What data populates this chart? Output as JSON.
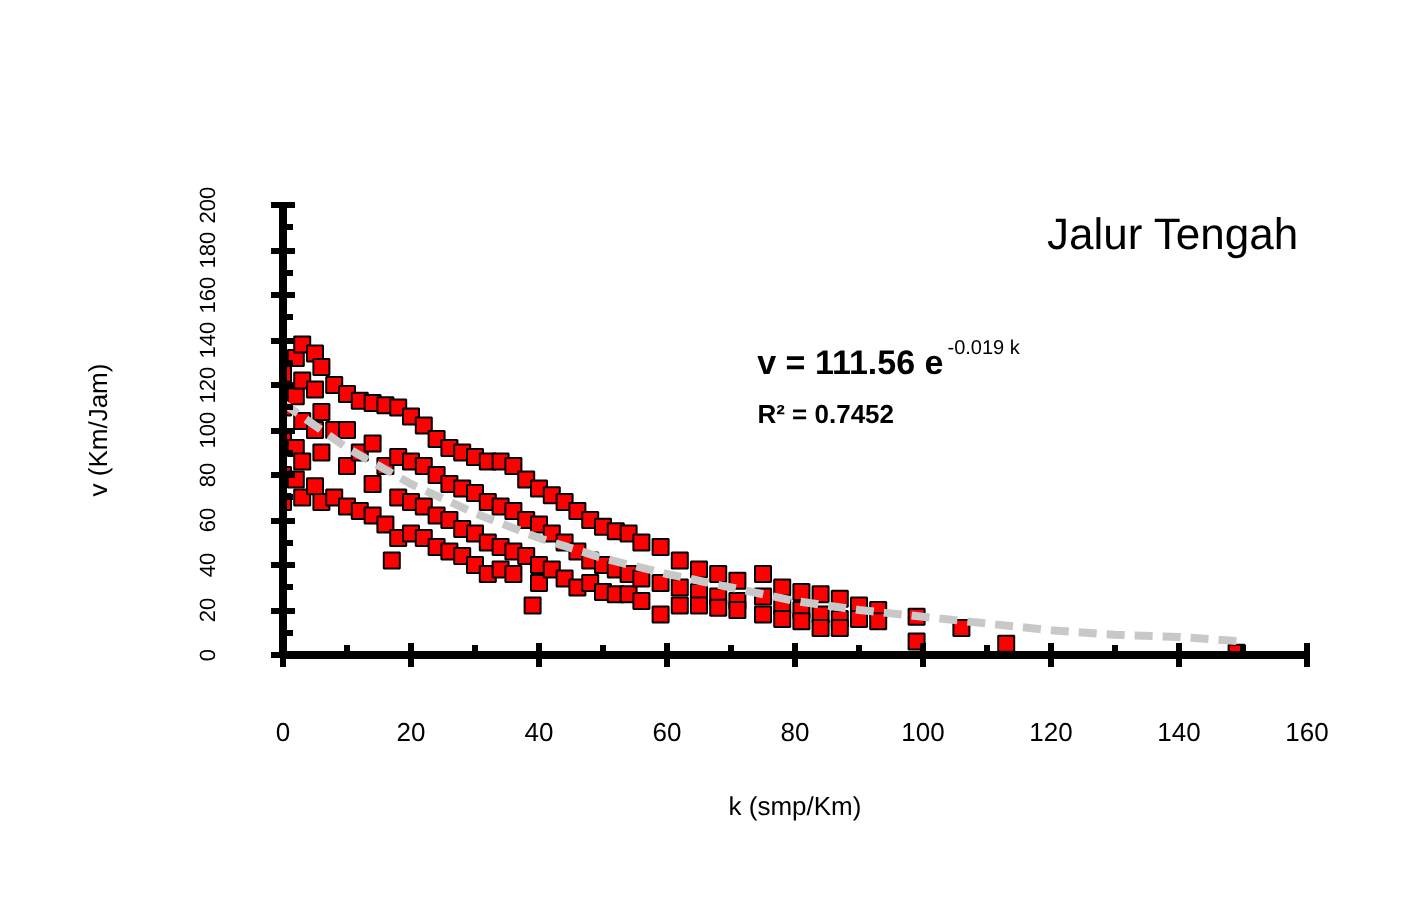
{
  "chart_data": {
    "type": "scatter",
    "title": "Jalur Tengah",
    "xlabel": "k (smp/Km)",
    "ylabel": "v (Km/Jam)",
    "annotations": [
      "v = 111.56 e$^{-0.019 k}$",
      "R² = 0.7452"
    ],
    "xlim": [
      0,
      160
    ],
    "ylim": [
      0,
      200
    ],
    "xticks": [
      0,
      {
        "value": 10,
        "label": null
      },
      20,
      {
        "value": 30,
        "label": null
      },
      40,
      {
        "value": 50,
        "label": null
      },
      60,
      {
        "value": 70,
        "label": null
      },
      80,
      {
        "value": 90,
        "label": null
      },
      100,
      {
        "value": 110,
        "label": null
      },
      120,
      {
        "value": 130,
        "label": null
      },
      140,
      {
        "value": 150,
        "label": null
      },
      160
    ],
    "yticks": [
      0,
      {
        "value": 10,
        "label": null
      },
      20,
      {
        "value": 30,
        "label": null
      },
      40,
      {
        "value": 50,
        "label": null
      },
      60,
      {
        "value": 70,
        "label": null
      },
      80,
      {
        "value": 90,
        "label": null
      },
      100,
      {
        "value": 110,
        "label": null
      },
      120,
      {
        "value": 130,
        "label": null
      },
      140,
      {
        "value": 150,
        "label": null
      },
      160,
      {
        "value": 170,
        "label": null
      },
      180,
      {
        "value": 190,
        "label": null
      },
      200
    ],
    "series": [
      {
        "marker": "square",
        "color": "#ff0000",
        "x": [
          0,
          0,
          0,
          0,
          0,
          2,
          2,
          2,
          2,
          3,
          3,
          3,
          3,
          3,
          5,
          5,
          5,
          5,
          6,
          6,
          6,
          6,
          8,
          8,
          8,
          10,
          10,
          10,
          10,
          12,
          12,
          12,
          14,
          14,
          14,
          14,
          16,
          16,
          16,
          17,
          18,
          18,
          18,
          18,
          20,
          20,
          20,
          20,
          22,
          22,
          22,
          22,
          24,
          24,
          24,
          24,
          26,
          26,
          26,
          26,
          28,
          28,
          28,
          28,
          30,
          30,
          30,
          30,
          32,
          32,
          32,
          32,
          34,
          34,
          34,
          34,
          36,
          36,
          36,
          36,
          38,
          38,
          38,
          39,
          40,
          40,
          40,
          40,
          42,
          42,
          42,
          44,
          44,
          44,
          46,
          46,
          46,
          48,
          48,
          48,
          50,
          50,
          50,
          52,
          52,
          52,
          54,
          54,
          54,
          56,
          56,
          56,
          59,
          59,
          59,
          62,
          62,
          62,
          65,
          65,
          65,
          68,
          68,
          68,
          71,
          71,
          71,
          75,
          75,
          75,
          78,
          78,
          78,
          81,
          81,
          81,
          84,
          84,
          84,
          87,
          87,
          87,
          90,
          90,
          93,
          93,
          99,
          99,
          106,
          113,
          149
        ],
        "values": [
          125,
          110,
          95,
          80,
          68,
          132,
          115,
          92,
          78,
          138,
          122,
          104,
          86,
          70,
          134,
          118,
          100,
          75,
          128,
          108,
          90,
          68,
          120,
          100,
          70,
          116,
          100,
          84,
          66,
          113,
          90,
          64,
          112,
          94,
          76,
          62,
          111,
          84,
          58,
          42,
          110,
          88,
          70,
          52,
          106,
          86,
          68,
          54,
          102,
          84,
          66,
          52,
          96,
          80,
          62,
          48,
          92,
          76,
          60,
          46,
          90,
          74,
          56,
          44,
          88,
          72,
          54,
          40,
          86,
          68,
          50,
          36,
          86,
          66,
          48,
          38,
          84,
          64,
          46,
          36,
          78,
          60,
          44,
          22,
          74,
          58,
          40,
          32,
          71,
          54,
          38,
          68,
          50,
          34,
          64,
          46,
          30,
          60,
          42,
          32,
          57,
          40,
          28,
          55,
          38,
          27,
          54,
          36,
          27,
          50,
          34,
          24,
          48,
          32,
          18,
          42,
          30,
          22,
          38,
          28,
          22,
          36,
          26,
          21,
          33,
          24,
          20,
          36,
          26,
          18,
          30,
          22,
          16,
          28,
          20,
          15,
          27,
          18,
          12,
          25,
          16,
          12,
          22,
          16,
          20,
          15,
          17,
          6,
          12,
          5,
          1
        ]
      },
      {
        "type": "line",
        "color": "#c8c8c8",
        "line_style": "dashed",
        "x": [
          0,
          10,
          20,
          30,
          40,
          50,
          60,
          70,
          80,
          90,
          100,
          110,
          120,
          130,
          140,
          150
        ],
        "values": [
          112,
          92,
          76,
          63,
          52,
          43,
          36,
          30,
          24,
          20,
          17,
          14,
          11,
          9,
          8,
          6
        ]
      }
    ]
  }
}
